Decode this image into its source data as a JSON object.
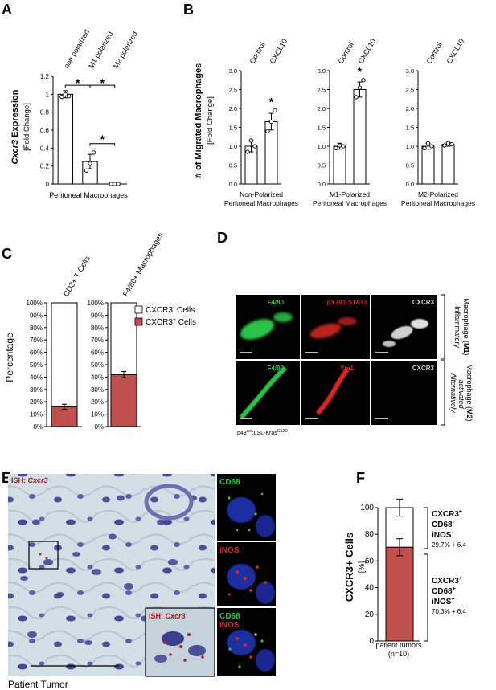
{
  "colors": {
    "bar_white": "#ffffff",
    "bar_red": "#c0504d",
    "axis": "#000000",
    "dot": "#ffffff",
    "green": "#2cc24a",
    "red_stain": "#e0242a",
    "gray_stain": "#d8d8d8",
    "tissue_bg": "#cfdbe3",
    "nuclei": "#3b3f8f"
  },
  "panels": {
    "A": {
      "letter": "A"
    },
    "B": {
      "letter": "B"
    },
    "C": {
      "letter": "C"
    },
    "D": {
      "letter": "D"
    },
    "E": {
      "letter": "E"
    },
    "F": {
      "letter": "F"
    }
  },
  "chart_data": [
    {
      "id": "A",
      "type": "bar",
      "categories": [
        "non polarized",
        "M1 polarized",
        "M2 polarized"
      ],
      "values": [
        1.0,
        0.25,
        0.0
      ],
      "errors": [
        0.04,
        0.08,
        0.0
      ],
      "points": [
        [
          0.97,
          1.0,
          0.98
        ],
        [
          0.15,
          0.23,
          0.35
        ],
        [
          0.0,
          0.0,
          0.0
        ]
      ],
      "ylabel_italic": "Cxcr3",
      "ylabel_main": " Expression",
      "ylabel_sub": "[Fold Change]",
      "xlabel": "Peritoneal Macrophages",
      "ylim": [
        0,
        1.2
      ],
      "yticks": [
        "0",
        "0.2",
        "0.4",
        "0.6",
        "0.8",
        "1",
        "1.2"
      ],
      "significance": [
        "*",
        "*",
        "*"
      ]
    },
    {
      "id": "B",
      "type": "bar",
      "ylabel_main": "# of Migrated Macrophages",
      "ylabel_sub": "[Fold Change]",
      "ylim": [
        0,
        3.0
      ],
      "yticks": [
        "0.0",
        "0.5",
        "1.0",
        "1.5",
        "2.0",
        "2.5",
        "3.0"
      ],
      "categories": [
        "Control",
        "CXCL10"
      ],
      "subplots": [
        {
          "xlabel_line1": "Non-Polarized",
          "xlabel_line2": "Peritoneal Macrophages",
          "values": [
            1.0,
            1.65
          ],
          "errors": [
            0.15,
            0.22
          ],
          "points": [
            [
              0.85,
              1.15,
              1.0
            ],
            [
              1.4,
              1.65,
              1.95
            ]
          ],
          "significance": "*"
        },
        {
          "xlabel_line1": "M1-Polarized",
          "xlabel_line2": "Peritoneal Macrophages",
          "values": [
            1.0,
            2.5
          ],
          "errors": [
            0.08,
            0.2
          ],
          "points": [
            [
              0.95,
              1.02,
              1.0
            ],
            [
              2.3,
              2.55,
              2.75
            ]
          ],
          "significance": "*"
        },
        {
          "xlabel_line1": "M2-Polarized",
          "xlabel_line2": "Peritoneal Macrophages",
          "values": [
            1.0,
            1.05
          ],
          "errors": [
            0.08,
            0.05
          ],
          "points": [
            [
              0.95,
              1.08,
              1.0
            ],
            [
              1.02,
              1.08,
              1.05
            ]
          ],
          "significance": ""
        }
      ]
    },
    {
      "id": "C",
      "type": "bar",
      "stacked": true,
      "ylabel": "Percentage",
      "yticks": [
        "0%",
        "10%",
        "20%",
        "30%",
        "40%",
        "50%",
        "60%",
        "70%",
        "80%",
        "90%",
        "100%"
      ],
      "ylim": [
        0,
        100
      ],
      "subplots": [
        {
          "category": "CD3+ T Cells",
          "positive": 16,
          "error": 2
        },
        {
          "category": "F4/80+ Macrophages",
          "positive": 42,
          "error": 2.5
        }
      ],
      "legend": [
        {
          "label_main": "CXCR3",
          "label_sup": "-",
          "label_tail": " Cells",
          "color": "#ffffff"
        },
        {
          "label_main": "CXCR3",
          "label_sup": "+",
          "label_tail": " Cells",
          "color": "#c0504d"
        }
      ]
    },
    {
      "id": "F",
      "type": "bar",
      "stacked": true,
      "categories": [
        "patient tumors"
      ],
      "sub_label": "(n=10)",
      "positive": 70.3,
      "total": 100,
      "positive_error": 6.4,
      "total_error": 6.4,
      "ylabel_main": "CXCR3+ Cells",
      "ylabel_sub": "[%]",
      "ylim": [
        0,
        100
      ],
      "yticks": [
        "0",
        "20",
        "40",
        "60",
        "80",
        "100"
      ]
    }
  ],
  "panel_d": {
    "row1": [
      "F4/80",
      "pY701-STAT1",
      "CXCR3"
    ],
    "row2": [
      "F4/80",
      "Ym1",
      "CXCR3"
    ],
    "side1_l1": "Inflammatory",
    "side1_l2": "Macrophage (",
    "side1_bold": "M1",
    "side1_end": ")",
    "side2_l1": "Alternatively",
    "side2_l2": "-activated",
    "side2_l3": "Macrophage (",
    "side2_bold": "M2",
    "side2_end": ")",
    "genotype_a": "p48",
    "genotype_sup1": "cre",
    "genotype_b": ";LSL-Kras",
    "genotype_sup2": "G12D"
  },
  "panel_e": {
    "ish_label": "ISH: ",
    "ish_gene": "Cxcr3",
    "inset_label": "ISH: ",
    "inset_gene": "Cxcr3",
    "side_labels": [
      "CD68",
      "iNOS",
      "CD68",
      "iNOS"
    ],
    "caption": "Patient Tumor"
  },
  "panel_f_annotations": {
    "top_l1": "CXCR3",
    "top_l1_sup": "+",
    "top_l2": "CD68",
    "top_l2_sup": "-",
    "top_l3": "iNOS",
    "top_l3_sup": "-",
    "top_pct": "29.7% + 6.4",
    "bottom_l1": "CXCR3",
    "bottom_l1_sup": "+",
    "bottom_l2": "CD68",
    "bottom_l2_sup": "+",
    "bottom_l3": "iNOS",
    "bottom_l3_sup": "+",
    "bottom_pct": "70.3% + 6.4"
  }
}
